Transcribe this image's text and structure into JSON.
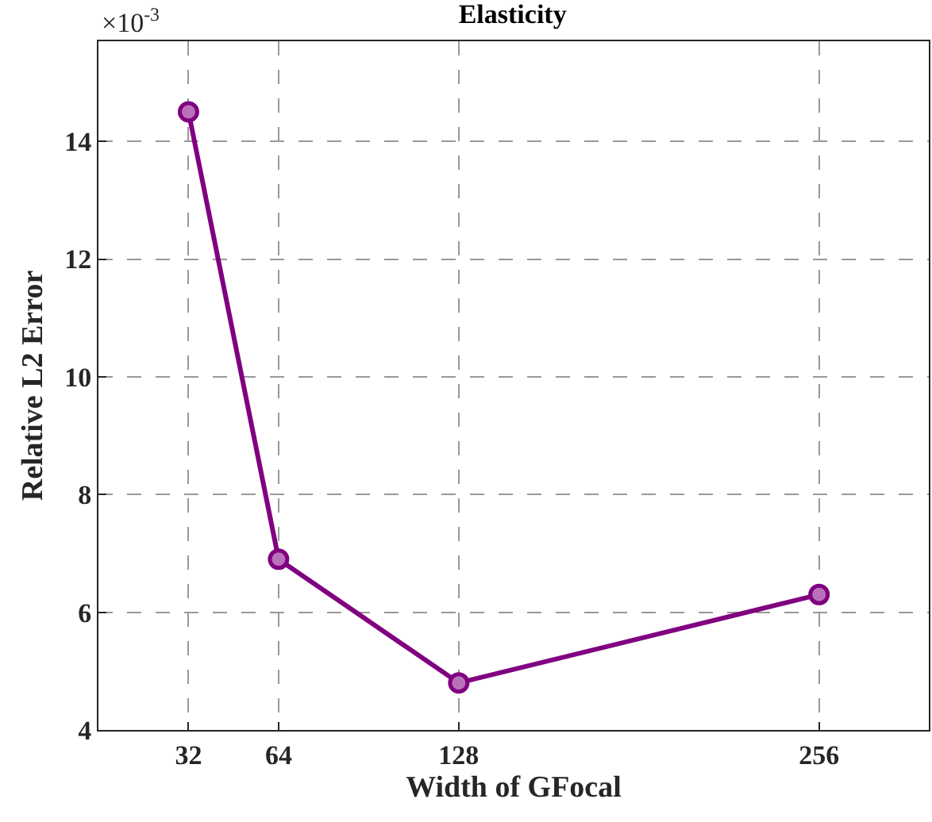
{
  "chart_data": {
    "type": "line",
    "title": "Elasticity",
    "xlabel": "Width of GFocal",
    "ylabel": "Relative L2 Error",
    "annotations": [
      "×10$^{-3}$"
    ],
    "x": [
      32,
      64,
      128,
      256
    ],
    "series": [
      {
        "color": "#800080",
        "values": [
          14.5,
          6.9,
          4.8,
          6.3
        ]
      }
    ],
    "xlim": [
      0,
      295
    ],
    "xticks": [
      32,
      64,
      128,
      256
    ],
    "ylim": [
      4,
      15.7
    ],
    "yticks": [
      4,
      6,
      8,
      10,
      12,
      14
    ],
    "grid": true,
    "marker": "circle",
    "line_style": "solid",
    "legend": false
  }
}
